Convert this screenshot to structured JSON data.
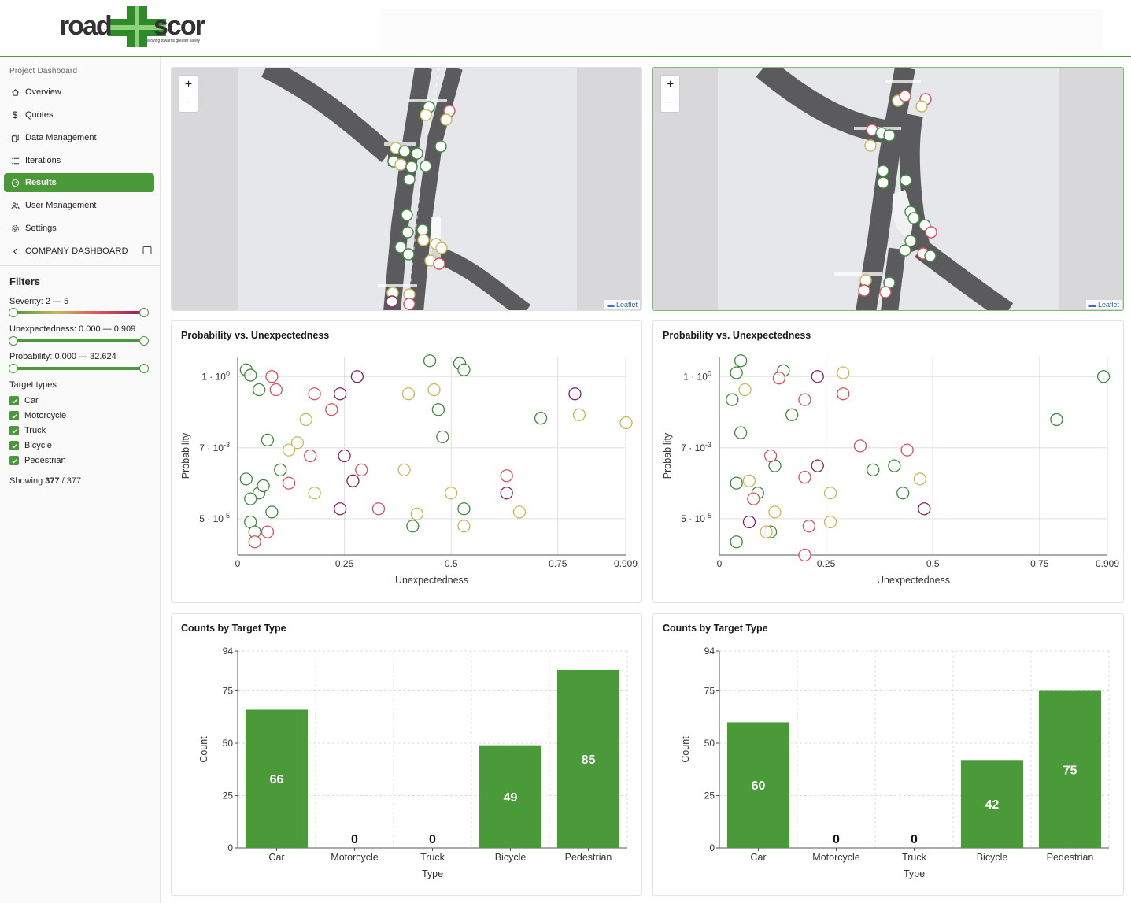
{
  "brand": {
    "logo_text": "roadscor",
    "tagline": "Moving towards greater safety"
  },
  "sidebar": {
    "caption": "Project Dashboard",
    "items": [
      {
        "label": "Overview",
        "icon": "home-icon"
      },
      {
        "label": "Quotes",
        "icon": "dollar-icon"
      },
      {
        "label": "Data Management",
        "icon": "documents-icon"
      },
      {
        "label": "Iterations",
        "icon": "list-icon"
      },
      {
        "label": "Results",
        "icon": "gauge-icon",
        "active": true
      },
      {
        "label": "User Management",
        "icon": "users-icon"
      },
      {
        "label": "Settings",
        "icon": "gear-icon"
      }
    ],
    "company_label": "COMPANY DASHBOARD"
  },
  "filters": {
    "title": "Filters",
    "severity": {
      "label": "Severity: 2 — 5",
      "min": 2,
      "max": 5
    },
    "unexpectedness": {
      "label": "Unexpectedness: 0.000 — 0.909",
      "min": 0.0,
      "max": 0.909
    },
    "probability": {
      "label": "Probability: 0.000 — 32.624",
      "min": 0.0,
      "max": 32.624
    },
    "target_types_title": "Target types",
    "target_types": [
      "Car",
      "Motorcycle",
      "Truck",
      "Bicycle",
      "Pedestrian"
    ],
    "showing_prefix": "Showing ",
    "showing_count": "377",
    "showing_suffix": " / 377"
  },
  "maps": {
    "zoom_in": "+",
    "zoom_out": "−",
    "attribution": "Leaflet"
  },
  "colors": {
    "accent": "#4a9a3a",
    "car": "#3d8b3d",
    "motorcycle": "#8a1f5a",
    "truck": "#3d8b3d",
    "bicycle": "#c9b857",
    "pedestrian": "#d94f5c"
  },
  "scatter": {
    "title": "Probability vs. Unexpectedness",
    "xlabel": "Unexpectedness",
    "ylabel": "Probability",
    "xticks": [
      "0",
      "0.25",
      "0.5",
      "0.75",
      "0.909"
    ],
    "yticks": [
      "1 · 10",
      "7 · 10",
      "5 · 10"
    ],
    "yexp": [
      "0",
      "-3",
      "-5"
    ]
  },
  "bars": {
    "title": "Counts by Target Type",
    "xlabel": "Type",
    "ylabel": "Count",
    "yticks": [
      "0",
      "25",
      "50",
      "75",
      "94"
    ]
  },
  "chart_data": [
    {
      "type": "bar",
      "title": "Counts by Target Type",
      "xlabel": "Type",
      "ylabel": "Count",
      "ylim": [
        0,
        94
      ],
      "categories": [
        "Car",
        "Motorcycle",
        "Truck",
        "Bicycle",
        "Pedestrian"
      ],
      "values": [
        66,
        0,
        0,
        49,
        85
      ]
    },
    {
      "type": "bar",
      "title": "Counts by Target Type",
      "xlabel": "Type",
      "ylabel": "Count",
      "ylim": [
        0,
        94
      ],
      "categories": [
        "Car",
        "Motorcycle",
        "Truck",
        "Bicycle",
        "Pedestrian"
      ],
      "values": [
        60,
        0,
        0,
        42,
        75
      ]
    },
    {
      "type": "scatter",
      "title": "Probability vs. Unexpectedness",
      "xlabel": "Unexpectedness",
      "ylabel": "Probability",
      "xlim": [
        0,
        0.909
      ],
      "y_scale": "log",
      "grid": true,
      "series": [
        {
          "name": "Car",
          "values": [
            [
              0.02,
              1.6
            ],
            [
              0.03,
              1.1
            ],
            [
              0.05,
              0.4
            ],
            [
              0.07,
              0.012
            ],
            [
              0.02,
              0.0008
            ],
            [
              0.05,
              0.0003
            ],
            [
              0.03,
              4e-05
            ],
            [
              0.08,
              8e-05
            ],
            [
              0.1,
              0.0015
            ],
            [
              0.04,
              2e-05
            ],
            [
              0.06,
              0.0005
            ],
            [
              0.03,
              0.0002
            ],
            [
              0.45,
              3.0
            ],
            [
              0.52,
              2.5
            ],
            [
              0.53,
              1.6
            ],
            [
              0.71,
              0.055
            ],
            [
              0.47,
              0.1
            ],
            [
              0.48,
              0.015
            ],
            [
              0.41,
              3e-05
            ],
            [
              0.53,
              0.0001
            ]
          ]
        },
        {
          "name": "Motorcycle",
          "values": [
            [
              0.28,
              1.0
            ],
            [
              0.24,
              0.3
            ],
            [
              0.25,
              0.004
            ],
            [
              0.27,
              0.0007
            ],
            [
              0.79,
              0.3
            ],
            [
              0.63,
              0.0003
            ],
            [
              0.24,
              0.0001
            ]
          ]
        },
        {
          "name": "Bicycle",
          "values": [
            [
              0.16,
              0.05
            ],
            [
              0.14,
              0.01
            ],
            [
              0.18,
              0.0003
            ],
            [
              0.12,
              0.006
            ],
            [
              0.4,
              0.3
            ],
            [
              0.46,
              0.4
            ],
            [
              0.8,
              0.07
            ],
            [
              0.91,
              0.04
            ],
            [
              0.5,
              0.0003
            ],
            [
              0.53,
              3e-05
            ],
            [
              0.66,
              8e-05
            ],
            [
              0.39,
              0.0015
            ],
            [
              0.42,
              7e-05
            ]
          ]
        },
        {
          "name": "Pedestrian",
          "values": [
            [
              0.08,
              1.0
            ],
            [
              0.09,
              0.4
            ],
            [
              0.18,
              0.3
            ],
            [
              0.22,
              0.1
            ],
            [
              0.17,
              0.004
            ],
            [
              0.12,
              0.0006
            ],
            [
              0.29,
              0.0015
            ],
            [
              0.33,
              0.0001
            ],
            [
              0.63,
              0.001
            ],
            [
              0.04,
              1e-05
            ],
            [
              0.07,
              2e-05
            ]
          ]
        }
      ]
    },
    {
      "type": "scatter",
      "title": "Probability vs. Unexpectedness",
      "xlabel": "Unexpectedness",
      "ylabel": "Probability",
      "xlim": [
        0,
        0.909
      ],
      "y_scale": "log",
      "grid": true,
      "series": [
        {
          "name": "Car",
          "values": [
            [
              0.05,
              3.0
            ],
            [
              0.04,
              1.3
            ],
            [
              0.15,
              1.5
            ],
            [
              0.03,
              0.2
            ],
            [
              0.05,
              0.02
            ],
            [
              0.04,
              0.0006
            ],
            [
              0.09,
              0.0003
            ],
            [
              0.13,
              0.002
            ],
            [
              0.12,
              2e-05
            ],
            [
              0.17,
              0.07
            ],
            [
              0.36,
              0.0015
            ],
            [
              0.41,
              0.002
            ],
            [
              0.43,
              0.0003
            ],
            [
              0.79,
              0.05
            ],
            [
              0.9,
              1.0
            ],
            [
              0.04,
              1e-05
            ]
          ]
        },
        {
          "name": "Motorcycle",
          "values": [
            [
              0.23,
              1.0
            ],
            [
              0.23,
              0.002
            ],
            [
              0.07,
              4e-05
            ],
            [
              0.48,
              0.0001
            ]
          ]
        },
        {
          "name": "Bicycle",
          "values": [
            [
              0.29,
              1.3
            ],
            [
              0.06,
              0.4
            ],
            [
              0.07,
              0.0007
            ],
            [
              0.26,
              0.0003
            ],
            [
              0.13,
              8e-05
            ],
            [
              0.26,
              4e-05
            ],
            [
              0.47,
              0.0008
            ],
            [
              0.11,
              2e-05
            ]
          ]
        },
        {
          "name": "Pedestrian",
          "values": [
            [
              0.14,
              0.9
            ],
            [
              0.2,
              0.2
            ],
            [
              0.29,
              0.3
            ],
            [
              0.33,
              0.008
            ],
            [
              0.44,
              0.006
            ],
            [
              0.12,
              0.004
            ],
            [
              0.2,
              0.0009
            ],
            [
              0.21,
              3e-05
            ],
            [
              0.2,
              4e-06
            ],
            [
              0.08,
              0.0002
            ]
          ]
        }
      ]
    }
  ]
}
